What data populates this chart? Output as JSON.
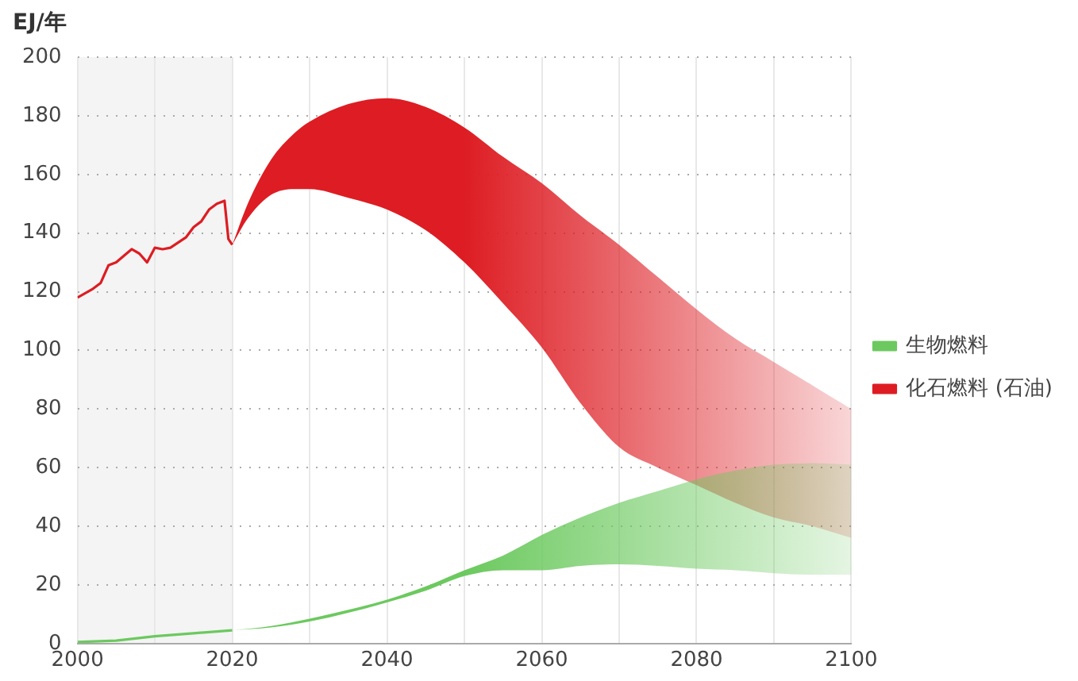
{
  "chart_data": {
    "type": "line",
    "ylabel": "EJ/年",
    "xlim": [
      2000,
      2100
    ],
    "ylim": [
      0,
      200
    ],
    "xticks": [
      2000,
      {
        "value": 2010,
        "label": null
      },
      2020,
      {
        "value": 2030,
        "label": null
      },
      2040,
      {
        "value": 2050,
        "label": null
      },
      2060,
      {
        "value": 2070,
        "label": null
      },
      2080,
      {
        "value": 2090,
        "label": null
      },
      2100
    ],
    "yticks": [
      0,
      20,
      40,
      60,
      80,
      100,
      120,
      140,
      160,
      180,
      200
    ],
    "grid": true,
    "legend": "right",
    "marker": "none",
    "line_style": "solid",
    "bands": [
      {
        "axis": "x",
        "from": 2000,
        "to": 2020,
        "color": "#f4f4f4"
      }
    ],
    "series": [
      {
        "name": "生物燃料",
        "color": "#6cc95f",
        "x": [
          2000,
          2005,
          2010,
          2015,
          2020,
          2025,
          2030,
          2035,
          2040,
          2045,
          2050,
          2055,
          2060,
          2065,
          2070,
          2075,
          2080,
          2085,
          2090,
          2095,
          2100
        ],
        "values": [
          0.5,
          1,
          2.5,
          3.5,
          4.5,
          null,
          null,
          null,
          null,
          null,
          null,
          null,
          null,
          null,
          null,
          null,
          null,
          null,
          null,
          null,
          null
        ],
        "lower": [
          null,
          null,
          null,
          null,
          4.5,
          5.5,
          7.5,
          10.5,
          14,
          18,
          23,
          25,
          25,
          26.5,
          27,
          26.5,
          25.5,
          25,
          24,
          23.5,
          23.5
        ],
        "upper": [
          null,
          null,
          null,
          null,
          4.5,
          6,
          8.5,
          11.5,
          15,
          19.5,
          25,
          30,
          37,
          43,
          48,
          52,
          56,
          59,
          61,
          61.5,
          61
        ]
      },
      {
        "name": "化石燃料 (石油)",
        "color": "#dd1d23",
        "x": [
          2000,
          2002,
          2003,
          2004,
          2005,
          2007,
          2008,
          2009,
          2010,
          2011,
          2012,
          2014,
          2015,
          2016,
          2017,
          2018,
          2019,
          2019.5,
          2020,
          2022,
          2025,
          2028,
          2030,
          2035,
          2040,
          2045,
          2050,
          2055,
          2060,
          2065,
          2070,
          2075,
          2080,
          2085,
          2090,
          2095,
          2100
        ],
        "values": [
          118,
          121,
          123,
          129,
          130,
          134.5,
          133,
          130,
          135,
          134.5,
          135,
          138.5,
          142,
          144,
          148,
          150,
          151,
          138,
          136,
          null,
          null,
          null,
          null,
          null,
          null,
          null,
          null,
          null,
          null,
          null,
          null,
          null,
          null,
          null,
          null,
          null,
          null
        ],
        "lower": [
          null,
          null,
          null,
          null,
          null,
          null,
          null,
          null,
          null,
          null,
          null,
          null,
          null,
          null,
          null,
          null,
          null,
          null,
          136,
          145,
          153,
          155,
          155,
          152,
          148,
          141,
          130,
          116,
          101,
          82,
          67,
          60,
          54,
          48,
          43,
          40,
          36
        ],
        "upper": [
          null,
          null,
          null,
          null,
          null,
          null,
          null,
          null,
          null,
          null,
          null,
          null,
          null,
          null,
          null,
          null,
          null,
          null,
          136,
          150,
          165,
          174,
          178,
          184,
          186,
          183,
          176,
          166,
          157,
          146,
          136,
          125,
          114,
          104,
          96,
          88,
          80
        ]
      }
    ]
  }
}
